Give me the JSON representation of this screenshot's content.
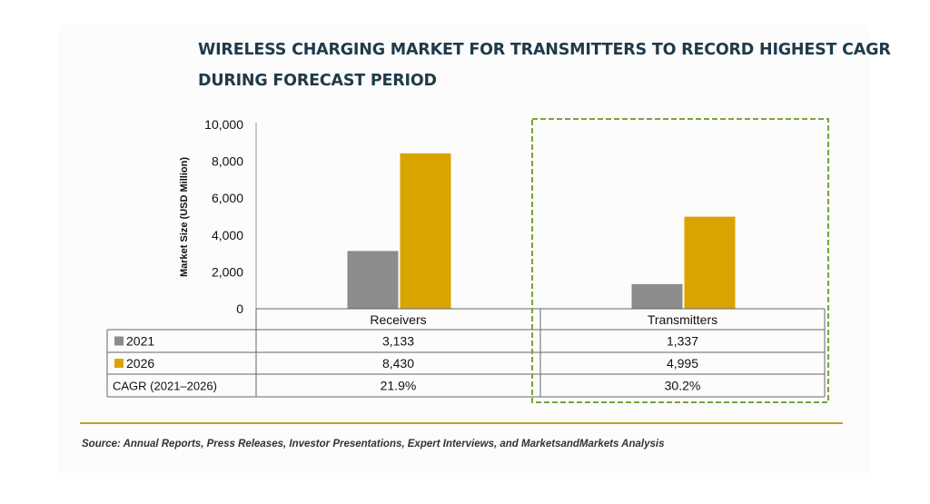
{
  "title_line1": "WIRELESS CHARGING MARKET FOR TRANSMITTERS TO RECORD HIGHEST CAGR",
  "title_line2": "DURING FORECAST PERIOD",
  "source": "Source: Annual Reports, Press Releases, Investor Presentations, Expert Interviews, and MarketsandMarkets Analysis",
  "colors": {
    "series_2021": "#8c8c8c",
    "series_2026": "#d9a400",
    "highlight_box": "#7aa33a",
    "divider": "#b8a133"
  },
  "chart_data": {
    "type": "bar",
    "categories": [
      "Receivers",
      "Transmitters"
    ],
    "series": [
      {
        "name": "2021",
        "values": [
          3133,
          1337
        ],
        "labels": [
          "3,133",
          "1,337"
        ]
      },
      {
        "name": "2026",
        "values": [
          8430,
          4995
        ],
        "labels": [
          "8,430",
          "4,995"
        ]
      }
    ],
    "ylabel": "Market Size (USD Million)",
    "xlabel": "",
    "ylim": [
      0,
      10000
    ],
    "yticks": [
      0,
      2000,
      4000,
      6000,
      8000,
      10000
    ],
    "ytick_labels": [
      "0",
      "2,000",
      "4,000",
      "6,000",
      "8,000",
      "10,000"
    ],
    "grid": false,
    "legend": "data table below chart",
    "table_extra_row": {
      "label": "CAGR (2021–2026)",
      "values": [
        "21.9%",
        "30.2%"
      ]
    },
    "highlighted_category": "Transmitters"
  }
}
